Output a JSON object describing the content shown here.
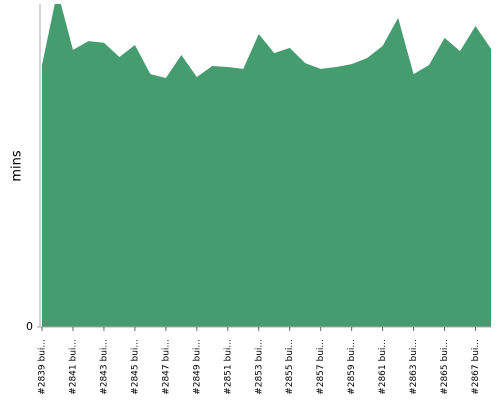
{
  "chart_data": {
    "type": "area",
    "y_label": "mins",
    "color": "#459c6e",
    "categories": [
      "#2839 bui...",
      null,
      "#2841 bui...",
      null,
      "#2843 bui...",
      null,
      "#2845 bui...",
      null,
      "#2847 bui...",
      null,
      "#2849 bui...",
      null,
      "#2851 bui...",
      null,
      "#2853 bui...",
      null,
      "#2855 bui...",
      null,
      "#2857 bui...",
      null,
      "#2859 bui...",
      null,
      "#2861 bui...",
      null,
      "#2863 bui...",
      null,
      "#2865 bui...",
      null,
      "#2867 bui...",
      null
    ],
    "values": [
      81.1,
      104,
      85.8,
      88.5,
      88,
      83.6,
      87.3,
      78.3,
      77.1,
      84.2,
      77.4,
      80.8,
      80.5,
      79.9,
      90.7,
      84.8,
      86.4,
      81.7,
      79.9,
      80.5,
      81.4,
      83.3,
      87,
      95.7,
      78.3,
      81.1,
      89.5,
      85.4,
      93.2,
      86.1
    ],
    "ylim": [
      0,
      100
    ],
    "yticks": [
      0
    ]
  }
}
